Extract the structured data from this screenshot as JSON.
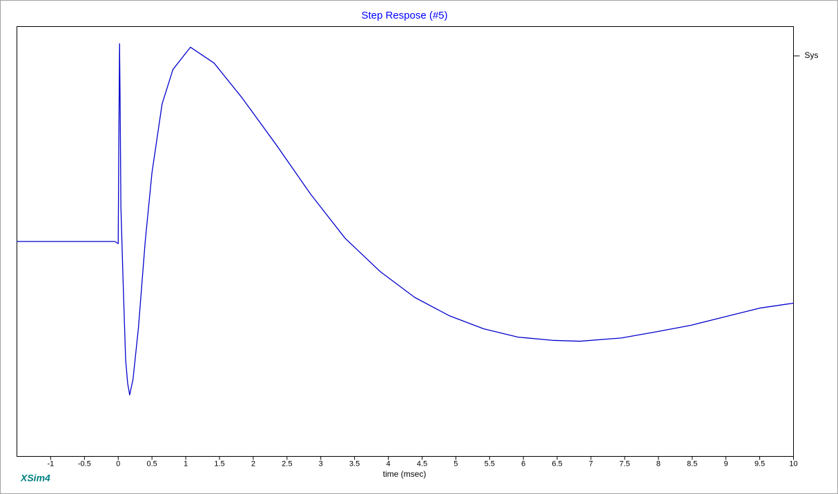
{
  "chart_data": {
    "type": "line",
    "title": "Step Respose (#5)",
    "x_label": "time (msec)",
    "footer_label": "XSim4",
    "xlim": [
      -1.5,
      10
    ],
    "ylim": [
      -1,
      1
    ],
    "xticks": [
      -1,
      -0.5,
      0,
      0.5,
      1,
      1.5,
      2,
      2.5,
      3,
      3.5,
      4,
      4.5,
      5,
      5.5,
      6,
      6.5,
      7,
      7.5,
      8,
      8.5,
      9,
      9.5,
      10
    ],
    "x": [
      -1.5,
      -0.05,
      0,
      0.01,
      0.02,
      0.03,
      0.04,
      0.07,
      0.11,
      0.14,
      0.17,
      0.22,
      0.3,
      0.4,
      0.5,
      0.65,
      0.81,
      1.07,
      1.42,
      1.83,
      2.34,
      2.85,
      3.36,
      3.88,
      4.39,
      4.9,
      5.41,
      5.92,
      6.43,
      6.84,
      7.45,
      7.97,
      8.48,
      8.99,
      9.5,
      10
    ],
    "series": [
      {
        "name": "Sys",
        "color": "#0000cc",
        "values": [
          0,
          0,
          -0.01,
          0.5,
          0.92,
          0.6,
          0.16,
          -0.16,
          -0.55,
          -0.66,
          -0.714,
          -0.64,
          -0.4,
          0,
          0.32,
          0.64,
          0.8,
          0.904,
          0.83,
          0.67,
          0.45,
          0.22,
          0.015,
          -0.14,
          -0.26,
          -0.345,
          -0.406,
          -0.445,
          -0.46,
          -0.464,
          -0.449,
          -0.42,
          -0.39,
          -0.35,
          -0.31,
          -0.287
        ]
      }
    ]
  }
}
